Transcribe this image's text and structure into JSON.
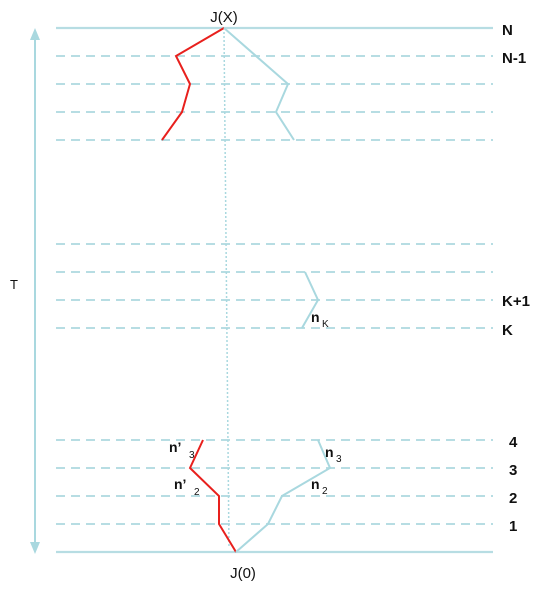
{
  "diagram": {
    "top_label": "J(X)",
    "bottom_label": "J(0)",
    "time_label": "T",
    "level_labels": {
      "N": "N",
      "N_minus_1": "N-1",
      "K_plus_1": "K+1",
      "K": "K",
      "l4": "4",
      "l3": "3",
      "l2": "2",
      "l1": "1"
    },
    "path_labels": {
      "n3": {
        "base": "n",
        "sub": "3"
      },
      "n2": {
        "base": "n",
        "sub": "2"
      },
      "nK": {
        "base": "n",
        "sub": "K"
      },
      "n3_prime": {
        "base": "n’",
        "sub": "3"
      },
      "n2_prime": {
        "base": "n’",
        "sub": "2"
      }
    },
    "colors": {
      "level_line": "#b7dde3",
      "red_path": "#e8201d",
      "blue_path": "#a9d8df",
      "arrow": "#a9d8df",
      "text": "#111111"
    }
  }
}
